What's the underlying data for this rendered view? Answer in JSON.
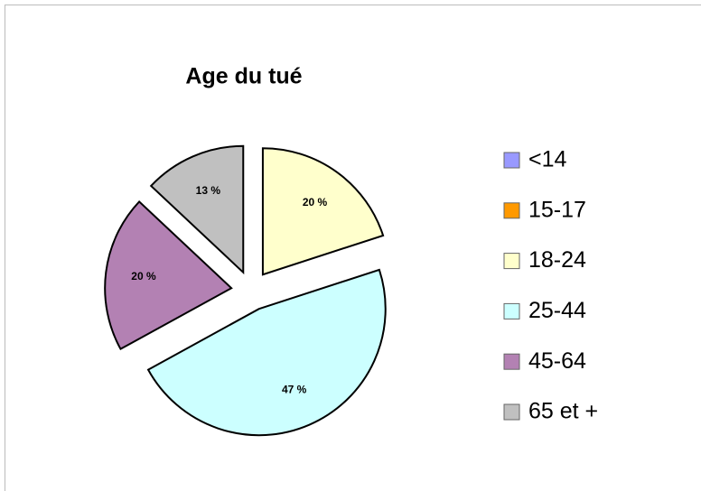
{
  "chart_data": {
    "type": "pie",
    "title": "Age du tué",
    "categories": [
      "<14",
      "15-17",
      "18-24",
      "25-44",
      "45-64",
      "65 et +"
    ],
    "values": [
      0,
      0,
      20,
      47,
      20,
      13
    ],
    "value_labels": [
      null,
      null,
      "20 %",
      "47 %",
      "20 %",
      "13 %"
    ],
    "colors": [
      "#9999ff",
      "#ff9900",
      "#ffffcc",
      "#ccffff",
      "#b381b3",
      "#c0c0c0"
    ],
    "legend": "right"
  }
}
